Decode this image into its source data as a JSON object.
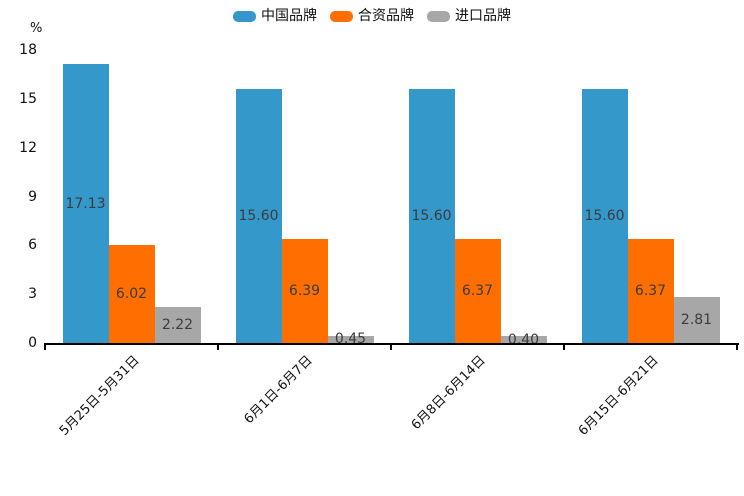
{
  "chart_data": {
    "type": "bar",
    "title": "",
    "xlabel": "",
    "ylabel": "%",
    "ylim": [
      0,
      18
    ],
    "yticks": [
      0,
      3,
      6,
      9,
      12,
      15,
      18
    ],
    "grid": false,
    "legend_position": "top-center",
    "value_labels": true,
    "value_label_decimals": 2,
    "categories": [
      "5月25日-5月31日",
      "6月1日-6月7日",
      "6月8日-6月14日",
      "6月15日-6月21日"
    ],
    "series": [
      {
        "name": "中国品牌",
        "color": "#3598cb",
        "values": [
          17.13,
          15.6,
          15.6,
          15.6
        ]
      },
      {
        "name": "合资品牌",
        "color": "#ff6e00",
        "values": [
          6.02,
          6.39,
          6.37,
          6.37
        ]
      },
      {
        "name": "进口品牌",
        "color": "#a7a7a7",
        "values": [
          2.22,
          0.45,
          0.4,
          2.81
        ]
      }
    ]
  },
  "style": {
    "axis_color": "#000000",
    "tick_text_color": "#111111",
    "value_label_color": "#3c3c3c",
    "background": "#ffffff"
  }
}
